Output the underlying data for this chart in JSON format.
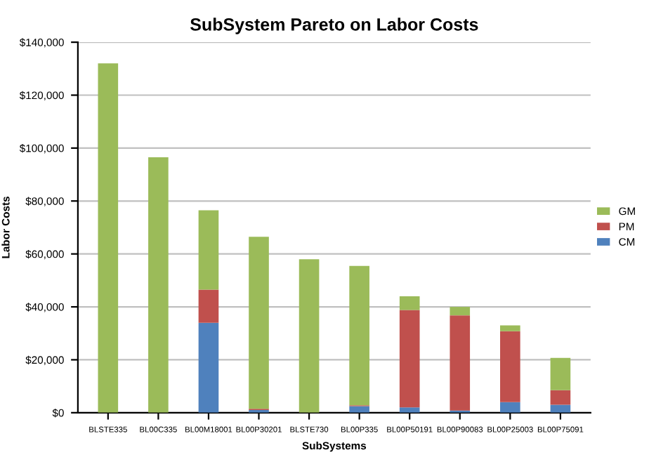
{
  "chart_data": {
    "type": "bar",
    "title": "SubSystem Pareto on Labor Costs",
    "xlabel": "SubSystems",
    "ylabel": "Labor Costs",
    "categories": [
      "BLSTE335",
      "BL00C335",
      "BL00M18001",
      "BL00P30201",
      "BLSTE730",
      "BL00P335",
      "BL00P50191",
      "BL00P90083",
      "BL00P25003",
      "BL00P75091"
    ],
    "stacked": true,
    "series": [
      {
        "name": "CM",
        "color": "#4f81bd",
        "values": [
          0,
          0,
          34000,
          1000,
          0,
          2500,
          2000,
          800,
          4000,
          3000
        ]
      },
      {
        "name": "PM",
        "color": "#c0504d",
        "values": [
          0,
          0,
          12500,
          500,
          0,
          300,
          36800,
          36000,
          26800,
          5500
        ]
      },
      {
        "name": "GM",
        "color": "#9bbb59",
        "values": [
          132000,
          96500,
          30000,
          65000,
          58000,
          52700,
          5200,
          3200,
          2200,
          12200
        ]
      }
    ],
    "ylim": [
      0,
      140000
    ],
    "yticks": [
      {
        "value": 0,
        "label": "$0"
      },
      {
        "value": 20000,
        "label": "$20,000"
      },
      {
        "value": 40000,
        "label": "$40,000"
      },
      {
        "value": 60000,
        "label": "$60,000"
      },
      {
        "value": 80000,
        "label": "$80,000"
      },
      {
        "value": 100000,
        "label": "$100,000"
      },
      {
        "value": 120000,
        "label": "$120,000"
      },
      {
        "value": 140000,
        "label": "$140,000"
      }
    ],
    "grid": "y",
    "legend": "right"
  }
}
